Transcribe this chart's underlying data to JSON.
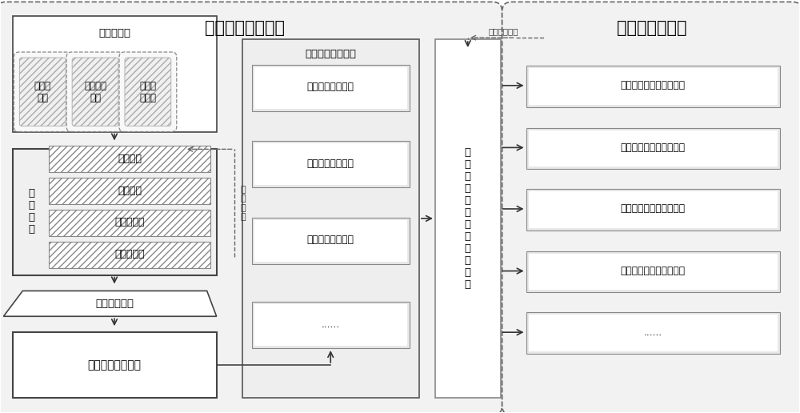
{
  "title_left": "历史行为知识学习",
  "title_right": "知识应用与发现",
  "section1_title": "目标数据源",
  "section1_boxes": [
    "结构化\n数据",
    "非结构化\n数据",
    "基础知\n识信息"
  ],
  "section2_label": "数\n据\n清\n洗",
  "section2_items": [
    "数据去重",
    "野值剔除",
    "别名归一化",
    "结构化抽取"
  ],
  "process_box1": "目标要素关联",
  "process_box2": "目标行为特征构建",
  "section3_title": "目标行为规律分析",
  "section3_items": [
    "目标时间规律挖掘",
    "目标航迹规律挖掘",
    "目标阵位规律挖掘",
    "......"
  ],
  "center_box": "基\n于\n历\n史\n行\n为\n规\n律\n识\n别\n模\n型",
  "right_items": [
    "目标类型识别与知识发现",
    "目标属性识别与知识发现",
    "目标状态识别与知识发现",
    "活动任务识别与知识发现",
    "......"
  ],
  "feedback_left": "结\n果\n反\n馈",
  "feedback_top": "应用效果反馈"
}
